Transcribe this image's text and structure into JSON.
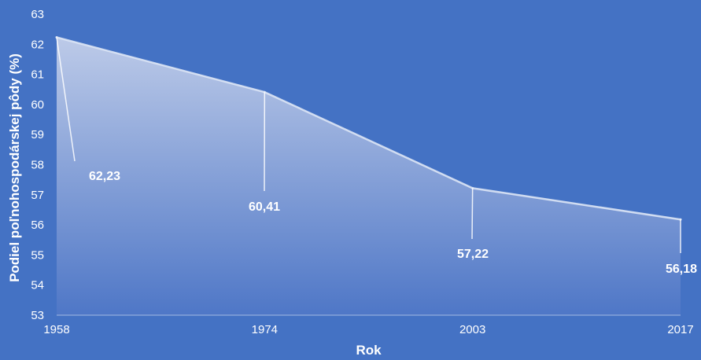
{
  "chart_data": {
    "type": "area",
    "x": [
      "1958",
      "1974",
      "2003",
      "2017"
    ],
    "values": [
      62.23,
      60.41,
      57.22,
      56.18
    ],
    "data_labels": [
      "62,23",
      "60,41",
      "57,22",
      "56,18"
    ],
    "xlabel": "Rok",
    "ylabel": "Podiel poľnohospodárskej pôdy (%)",
    "ylim": [
      53,
      63
    ],
    "yticks": [
      "53",
      "54",
      "55",
      "56",
      "57",
      "58",
      "59",
      "60",
      "61",
      "62",
      "63"
    ],
    "grid": false,
    "legend": "none",
    "colors": {
      "background": "#4472c4",
      "area_top": "#c3cfea",
      "area_bottom": "#4f77c7",
      "line": "#dde5f5",
      "text": "#ffffff"
    }
  }
}
